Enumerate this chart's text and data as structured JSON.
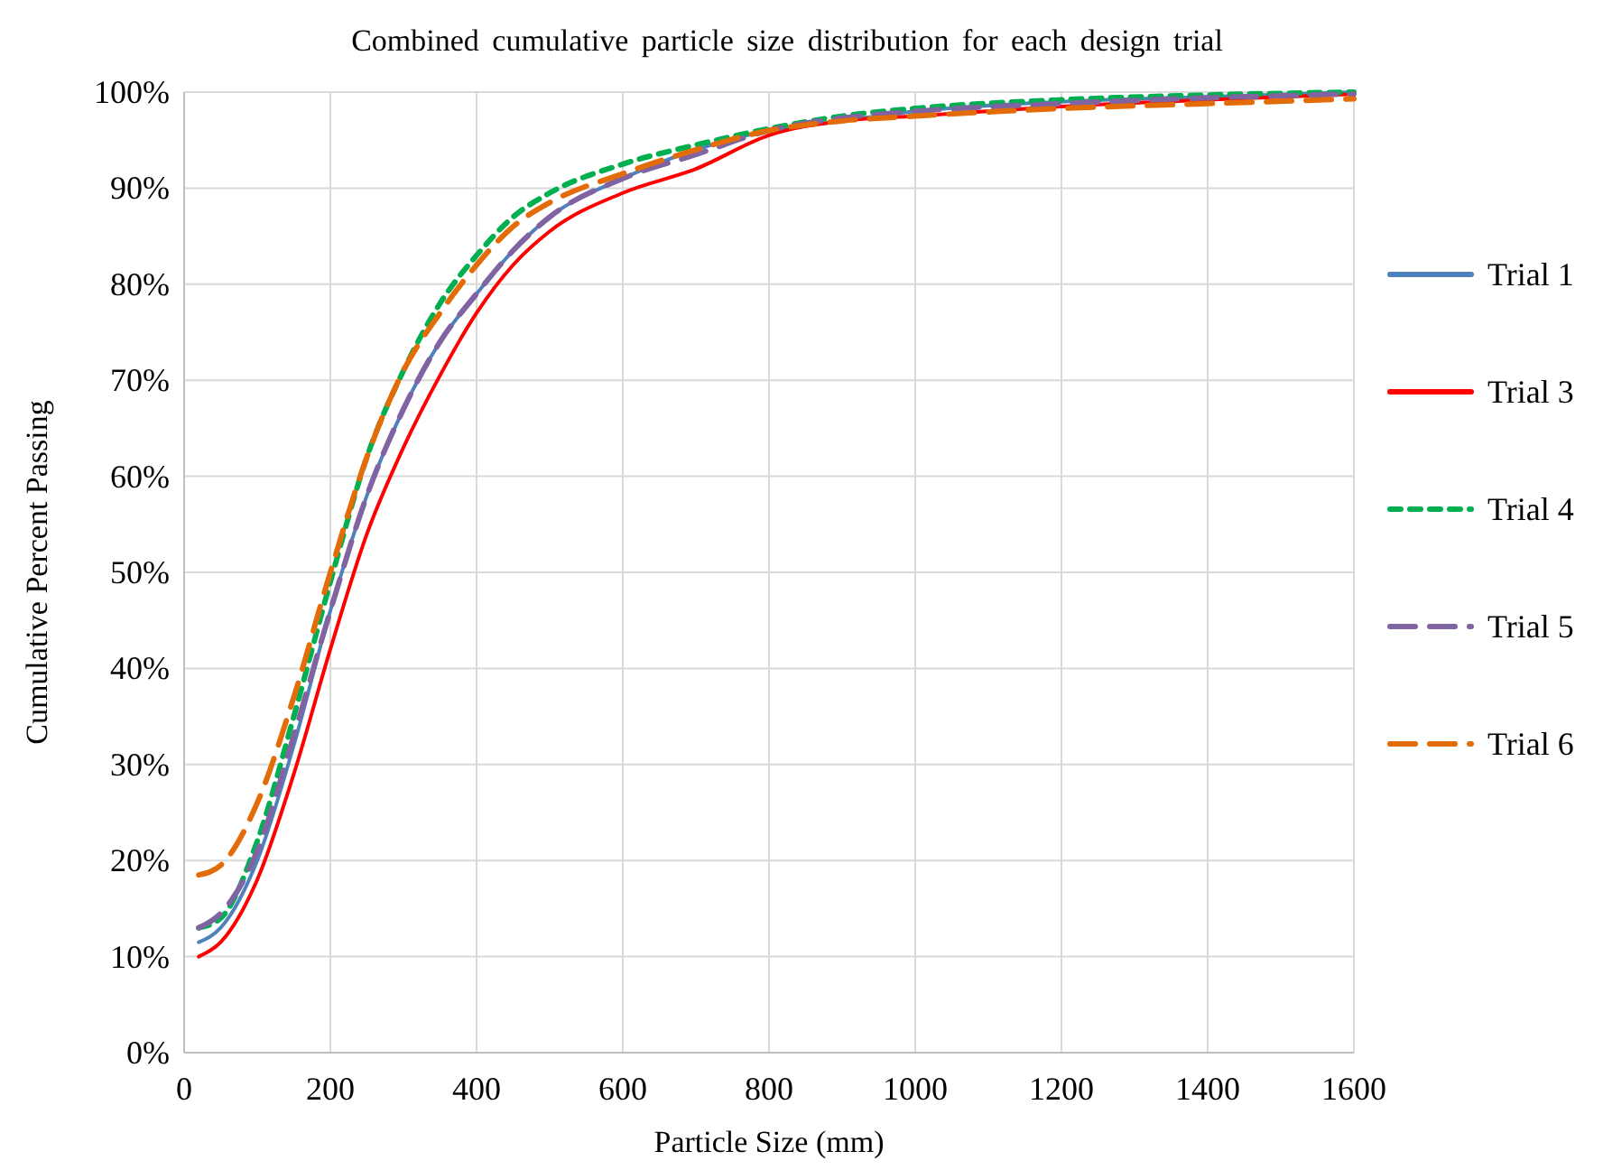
{
  "chart_data": {
    "type": "line",
    "title": "Combined cumulative particle size distribution for each design trial",
    "xlabel": "Particle Size (mm)",
    "ylabel": "Cumulative Percent Passing",
    "x": [
      20,
      50,
      100,
      150,
      200,
      250,
      300,
      350,
      400,
      450,
      500,
      600,
      700,
      800,
      900,
      1000,
      1200,
      1400,
      1600
    ],
    "xlim": [
      0,
      1600
    ],
    "xticks": [
      0,
      200,
      400,
      600,
      800,
      1000,
      1200,
      1400,
      1600
    ],
    "ylim": [
      0,
      100
    ],
    "yticks": [
      {
        "value": 0,
        "label": "0%"
      },
      {
        "value": 10,
        "label": "10%"
      },
      {
        "value": 20,
        "label": "20%"
      },
      {
        "value": 30,
        "label": "30%"
      },
      {
        "value": 40,
        "label": "40%"
      },
      {
        "value": 50,
        "label": "50%"
      },
      {
        "value": 60,
        "label": "60%"
      },
      {
        "value": 70,
        "label": "70%"
      },
      {
        "value": 80,
        "label": "80%"
      },
      {
        "value": 90,
        "label": "90%"
      },
      {
        "value": 100,
        "label": "100%"
      }
    ],
    "grid": true,
    "legend": "right",
    "marker": "none",
    "series": [
      {
        "name": "Trial 1",
        "color": "#4f81bd",
        "line_style": "solid",
        "values": [
          11.5,
          13,
          20,
          32,
          46,
          58,
          67,
          74,
          79,
          83.5,
          87,
          91,
          94,
          96,
          97,
          98,
          99,
          99.5,
          100
        ]
      },
      {
        "name": "Trial 3",
        "color": "#ff0000",
        "line_style": "solid",
        "values": [
          10,
          11.5,
          18,
          29,
          42,
          54,
          63,
          70.5,
          77,
          82,
          85.5,
          89.5,
          92,
          95.5,
          97,
          97.5,
          98.5,
          99.2,
          99.8
        ]
      },
      {
        "name": "Trial 4",
        "color": "#00b050",
        "line_style": "dotted",
        "values": [
          13,
          14,
          22,
          35,
          49,
          62,
          71,
          78,
          83,
          87,
          89.5,
          92.5,
          94.5,
          96.2,
          97.5,
          98.3,
          99.2,
          99.7,
          100
        ]
      },
      {
        "name": "Trial 5",
        "color": "#8064a2",
        "line_style": "dashed",
        "values": [
          13,
          14.5,
          21,
          33,
          46,
          58,
          67,
          74,
          79,
          83.5,
          87,
          91,
          93.5,
          96,
          97.3,
          98,
          98.8,
          99.4,
          99.8
        ]
      },
      {
        "name": "Trial 6",
        "color": "#e36c09",
        "line_style": "dashed",
        "values": [
          18.5,
          19.5,
          26,
          37,
          50,
          62,
          71,
          77,
          82,
          86,
          88.5,
          91.5,
          94,
          96,
          97,
          97.5,
          98.3,
          98.8,
          99.3
        ]
      }
    ]
  }
}
